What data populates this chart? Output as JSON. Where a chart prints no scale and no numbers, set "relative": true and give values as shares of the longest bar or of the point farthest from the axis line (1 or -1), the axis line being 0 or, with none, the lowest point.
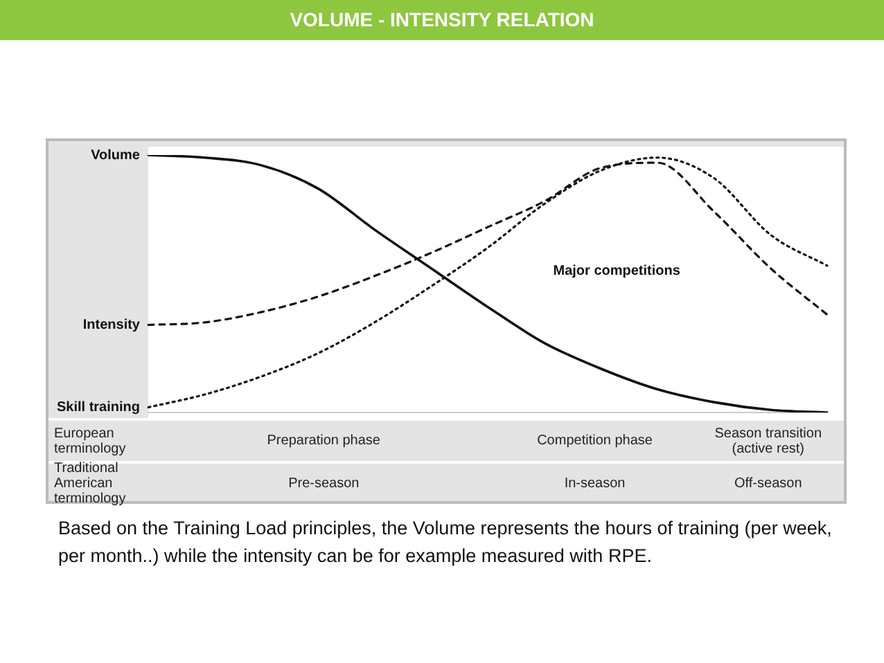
{
  "chart_data": {
    "type": "line",
    "title": "VOLUME - INTENSITY RELATION",
    "relative": true,
    "legend": false,
    "marker": "none",
    "categories": [
      null,
      null,
      null,
      null,
      null,
      null,
      null,
      null,
      null,
      null,
      null,
      null,
      null
    ],
    "series": [
      {
        "name": "Volume",
        "color": "#111111",
        "line_style": "solid",
        "values": [
          1.0,
          0.99,
          0.96,
          0.87,
          0.71,
          0.56,
          0.41,
          0.27,
          0.17,
          0.09,
          0.04,
          0.01,
          0
        ]
      },
      {
        "name": "Intensity",
        "color": "#111111",
        "line_style": "dashed",
        "values": [
          0.34,
          0.35,
          0.39,
          0.45,
          0.53,
          0.62,
          0.72,
          0.82,
          0.95,
          0.97,
          0.78,
          0.56,
          0.38
        ]
      },
      {
        "name": "Skill training",
        "color": "#111111",
        "line_style": "dotted",
        "values": [
          0.02,
          0.07,
          0.14,
          0.23,
          0.35,
          0.49,
          0.64,
          0.81,
          0.94,
          0.99,
          0.91,
          0.69,
          0.57
        ]
      }
    ],
    "annotations": [
      "Major competitions",
      "European terminology",
      "Preparation phase",
      "Competition phase",
      "Season transition (active rest)",
      "Traditional American terminology",
      "Pre-season",
      "In-season",
      "Off-season",
      "Based on the Training Load principles, the Volume represents the hours of training (per week, per month..) while the intensity can be for example measured with RPE."
    ]
  }
}
